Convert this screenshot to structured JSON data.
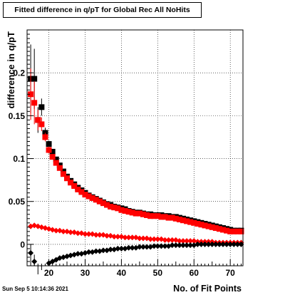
{
  "canvas": {
    "title": "Fitted difference in q/pT for Global Rec All NoHits",
    "timestamp": "Sun Sep  5 10:14:36 2021"
  },
  "chart_data": {
    "type": "scatter",
    "title": "Fitted difference in q/pT for Global Rec All NoHits",
    "xlabel": "No. of Fit Points",
    "ylabel": "difference in q/pT",
    "xlim": [
      14,
      73.5
    ],
    "ylim": [
      -0.025,
      0.25
    ],
    "xticks": [
      20,
      30,
      40,
      50,
      60,
      70
    ],
    "xtick_labels": [
      "20",
      "30",
      "40",
      "50",
      "60",
      "70"
    ],
    "yticks": [
      0,
      0.05,
      0.1,
      0.15,
      0.2
    ],
    "ytick_labels": [
      "0",
      "0.05",
      "0.1",
      "0.15",
      "0.2"
    ],
    "grid": true,
    "series": [
      {
        "role": "sigma-black",
        "marker": "square",
        "color": "#000000",
        "x": [
          15,
          16,
          17,
          18,
          19,
          20,
          21,
          22,
          23,
          24,
          25,
          26,
          27,
          28,
          29,
          30,
          31,
          32,
          33,
          34,
          35,
          36,
          37,
          38,
          39,
          40,
          41,
          42,
          43,
          44,
          45,
          46,
          47,
          48,
          49,
          50,
          51,
          52,
          53,
          54,
          55,
          56,
          57,
          58,
          59,
          60,
          61,
          62,
          63,
          64,
          65,
          66,
          67,
          68,
          69,
          70,
          71,
          72,
          73
        ],
        "y": [
          0.193,
          0.193,
          0.145,
          0.16,
          0.13,
          0.117,
          0.108,
          0.099,
          0.092,
          0.085,
          0.079,
          0.074,
          0.07,
          0.066,
          0.063,
          0.06,
          0.057,
          0.055,
          0.053,
          0.051,
          0.049,
          0.047,
          0.046,
          0.044,
          0.043,
          0.042,
          0.041,
          0.039,
          0.038,
          0.037,
          0.037,
          0.036,
          0.035,
          0.035,
          0.034,
          0.034,
          0.034,
          0.033,
          0.033,
          0.032,
          0.032,
          0.031,
          0.03,
          0.029,
          0.028,
          0.027,
          0.026,
          0.025,
          0.024,
          0.023,
          0.022,
          0.021,
          0.02,
          0.019,
          0.018,
          0.017,
          0.016,
          0.016,
          0.016
        ],
        "err": [
          0.04,
          0.035,
          0.015,
          0.01,
          0.006,
          0.004,
          0.003,
          0.002,
          0.002,
          0.002,
          0.001,
          0.001,
          0.001,
          0.001,
          0.001,
          0.001,
          0,
          0,
          0,
          0,
          0,
          0,
          0,
          0,
          0,
          0,
          0,
          0,
          0,
          0,
          0,
          0,
          0,
          0,
          0,
          0,
          0,
          0,
          0,
          0,
          0,
          0,
          0,
          0,
          0,
          0,
          0,
          0,
          0,
          0,
          0,
          0,
          0,
          0,
          0,
          0,
          0,
          0,
          0
        ]
      },
      {
        "role": "sigma-red",
        "marker": "square",
        "color": "#ff0000",
        "x": [
          15,
          16,
          17,
          18,
          19,
          20,
          21,
          22,
          23,
          24,
          25,
          26,
          27,
          28,
          29,
          30,
          31,
          32,
          33,
          34,
          35,
          36,
          37,
          38,
          39,
          40,
          41,
          42,
          43,
          44,
          45,
          46,
          47,
          48,
          49,
          50,
          51,
          52,
          53,
          54,
          55,
          56,
          57,
          58,
          59,
          60,
          61,
          62,
          63,
          64,
          65,
          66,
          67,
          68,
          69,
          70,
          71,
          72,
          73
        ],
        "y": [
          0.175,
          0.165,
          0.145,
          0.14,
          0.125,
          0.11,
          0.102,
          0.095,
          0.089,
          0.082,
          0.077,
          0.072,
          0.068,
          0.064,
          0.061,
          0.058,
          0.056,
          0.054,
          0.052,
          0.05,
          0.048,
          0.046,
          0.044,
          0.043,
          0.042,
          0.04,
          0.039,
          0.038,
          0.037,
          0.036,
          0.036,
          0.035,
          0.034,
          0.033,
          0.033,
          0.033,
          0.032,
          0.032,
          0.031,
          0.031,
          0.03,
          0.029,
          0.028,
          0.027,
          0.026,
          0.025,
          0.024,
          0.023,
          0.022,
          0.021,
          0.02,
          0.019,
          0.018,
          0.017,
          0.016,
          0.015,
          0.015,
          0.015,
          0.015
        ],
        "err": [
          0.03,
          0.025,
          0.012,
          0.008,
          0.005,
          0.004,
          0.003,
          0.002,
          0.002,
          0.001,
          0.001,
          0.001,
          0.001,
          0.001,
          0.001,
          0.001,
          0,
          0,
          0,
          0,
          0,
          0,
          0,
          0,
          0,
          0,
          0,
          0,
          0,
          0,
          0,
          0,
          0,
          0,
          0,
          0,
          0,
          0,
          0,
          0,
          0,
          0,
          0,
          0,
          0,
          0,
          0,
          0,
          0,
          0,
          0,
          0,
          0,
          0,
          0,
          0,
          0,
          0,
          0
        ]
      },
      {
        "role": "mean-red",
        "marker": "diamond",
        "color": "#ff0000",
        "x": [
          15,
          16,
          17,
          18,
          19,
          20,
          21,
          22,
          23,
          24,
          25,
          26,
          27,
          28,
          29,
          30,
          31,
          32,
          33,
          34,
          35,
          36,
          37,
          38,
          39,
          40,
          41,
          42,
          43,
          44,
          45,
          46,
          47,
          48,
          49,
          50,
          51,
          52,
          53,
          54,
          55,
          56,
          57,
          58,
          59,
          60,
          61,
          62,
          63,
          64,
          65,
          66,
          67,
          68,
          69,
          70,
          71,
          72,
          73
        ],
        "y": [
          0.021,
          0.022,
          0.021,
          0.02,
          0.019,
          0.018,
          0.017,
          0.016,
          0.016,
          0.015,
          0.015,
          0.014,
          0.014,
          0.013,
          0.013,
          0.012,
          0.012,
          0.012,
          0.011,
          0.011,
          0.011,
          0.01,
          0.01,
          0.009,
          0.009,
          0.009,
          0.008,
          0.008,
          0.008,
          0.008,
          0.007,
          0.007,
          0.007,
          0.006,
          0.006,
          0.006,
          0.006,
          0.005,
          0.005,
          0.005,
          0.005,
          0.004,
          0.004,
          0.004,
          0.004,
          0.004,
          0.003,
          0.003,
          0.003,
          0.003,
          0.003,
          0.002,
          0.002,
          0.002,
          0.002,
          0.002,
          0.002,
          0.002,
          0.002
        ],
        "err": [
          0.003,
          0.003,
          0.002,
          0.002,
          0.001,
          0.001,
          0.001,
          0.001,
          0,
          0,
          0,
          0,
          0,
          0,
          0,
          0,
          0,
          0,
          0,
          0,
          0,
          0,
          0,
          0,
          0,
          0,
          0,
          0,
          0,
          0,
          0,
          0,
          0,
          0,
          0,
          0,
          0,
          0,
          0,
          0,
          0,
          0,
          0,
          0,
          0,
          0,
          0,
          0,
          0,
          0,
          0,
          0,
          0,
          0,
          0,
          0,
          0,
          0,
          0
        ]
      },
      {
        "role": "mean-black",
        "marker": "diamond",
        "color": "#000000",
        "x": [
          15,
          16,
          17,
          18,
          19,
          20,
          21,
          22,
          23,
          24,
          25,
          26,
          27,
          28,
          29,
          30,
          31,
          32,
          33,
          34,
          35,
          36,
          37,
          38,
          39,
          40,
          41,
          42,
          43,
          44,
          45,
          46,
          47,
          48,
          49,
          50,
          51,
          52,
          53,
          54,
          55,
          56,
          57,
          58,
          59,
          60,
          61,
          62,
          63,
          64,
          65,
          66,
          67,
          68,
          69,
          70,
          71,
          72,
          73
        ],
        "y": [
          -0.01,
          -0.02,
          -0.04,
          -0.034,
          -0.026,
          -0.022,
          -0.02,
          -0.018,
          -0.016,
          -0.015,
          -0.014,
          -0.013,
          -0.012,
          -0.011,
          -0.011,
          -0.01,
          -0.009,
          -0.009,
          -0.008,
          -0.008,
          -0.007,
          -0.007,
          -0.006,
          -0.006,
          -0.005,
          -0.005,
          -0.005,
          -0.004,
          -0.004,
          -0.004,
          -0.003,
          -0.003,
          -0.003,
          -0.003,
          -0.002,
          -0.002,
          -0.002,
          -0.002,
          -0.002,
          -0.001,
          -0.001,
          -0.001,
          -0.001,
          -0.001,
          -0.001,
          -0.001,
          0.0,
          0.0,
          0.0,
          0.0,
          0.0,
          0.0,
          0.0,
          0.0,
          0.0,
          0.0,
          0.0,
          0.0,
          0.0
        ],
        "err": [
          0.01,
          0.008,
          0.005,
          0.004,
          0.003,
          0.002,
          0.002,
          0.001,
          0.001,
          0.001,
          0,
          0,
          0,
          0,
          0,
          0,
          0,
          0,
          0,
          0,
          0,
          0,
          0,
          0,
          0,
          0,
          0,
          0,
          0,
          0,
          0,
          0,
          0,
          0,
          0,
          0,
          0,
          0,
          0,
          0,
          0,
          0,
          0,
          0,
          0,
          0,
          0,
          0,
          0,
          0,
          0,
          0,
          0,
          0,
          0,
          0,
          0,
          0,
          0
        ]
      }
    ]
  }
}
